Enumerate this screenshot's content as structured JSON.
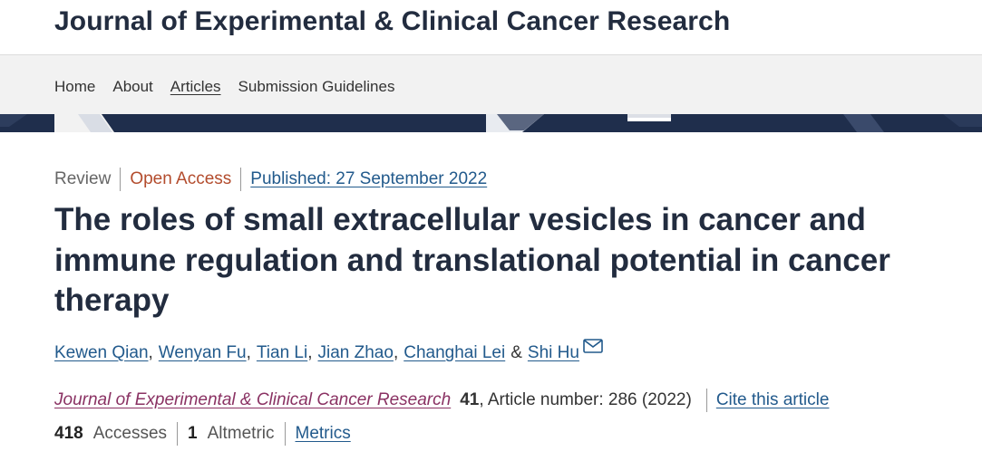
{
  "header": {
    "journal_title": "Journal of Experimental & Clinical Cancer Research"
  },
  "nav": {
    "items": [
      {
        "label": "Home",
        "active": false
      },
      {
        "label": "About",
        "active": false
      },
      {
        "label": "Articles",
        "active": true
      },
      {
        "label": "Submission Guidelines",
        "active": false
      }
    ]
  },
  "article": {
    "type": "Review",
    "access": "Open Access",
    "published": "Published: 27 September 2022",
    "title": "The roles of small extracellular vesicles in cancer and immune regulation and translational potential in cancer therapy",
    "authors": [
      {
        "name": "Kewen Qian"
      },
      {
        "name": "Wenyan Fu"
      },
      {
        "name": "Tian Li"
      },
      {
        "name": "Jian Zhao"
      },
      {
        "name": "Changhai Lei"
      },
      {
        "name": "Shi Hu",
        "corresponding": true
      }
    ],
    "author_separator": ",",
    "author_conjunction": "&",
    "corresponding_icon": "mail-icon",
    "citation": {
      "journal": "Journal of Experimental & Clinical Cancer Research",
      "volume": "41",
      "details": ", Article number: 286 (2022)",
      "cite_label": "Cite this article"
    },
    "metrics": {
      "accesses_value": "418",
      "accesses_label": "Accesses",
      "altmetric_value": "1",
      "altmetric_label": "Altmetric",
      "metrics_link": "Metrics"
    }
  },
  "colors": {
    "title": "#222c3f",
    "link": "#225a8c",
    "open_access": "#b34c2d",
    "journal_link": "#8a3263",
    "nav_background": "#f2f2f2",
    "banner": "#1f2e4c"
  }
}
